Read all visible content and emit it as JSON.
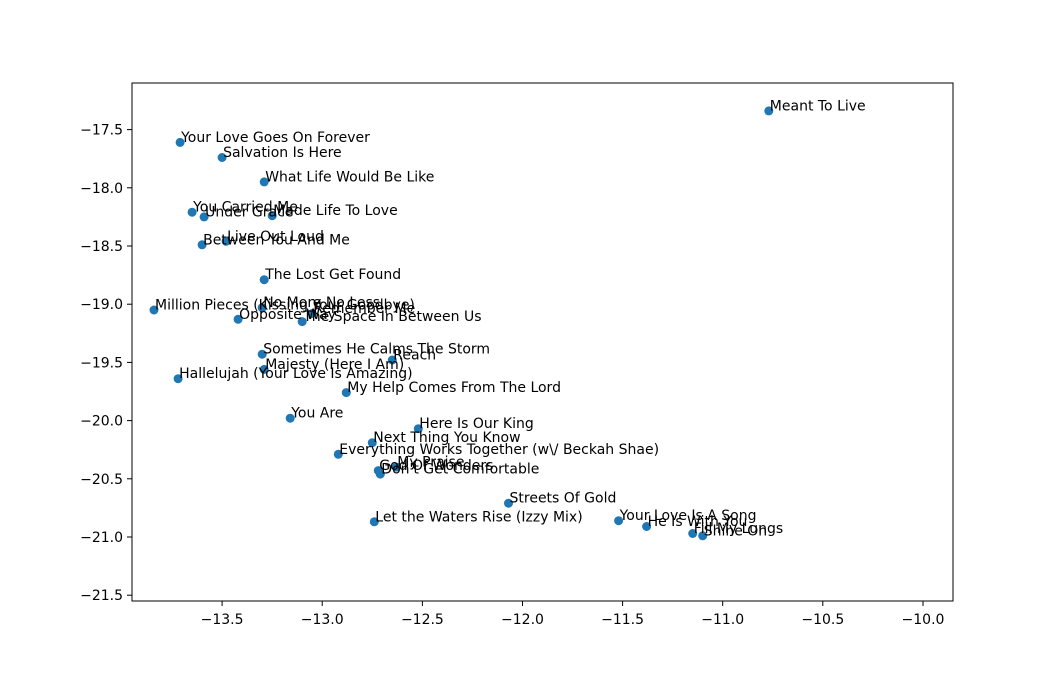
{
  "chart_data": {
    "type": "scatter",
    "title": "",
    "xlabel": "",
    "ylabel": "",
    "xlim": [
      -13.95,
      -9.85
    ],
    "ylim": [
      -21.55,
      -17.1
    ],
    "xticks": [
      "−13.5",
      "−13.0",
      "−12.5",
      "−12.0",
      "−11.5",
      "−11.0",
      "−10.5",
      "−10.0"
    ],
    "xtick_values": [
      -13.5,
      -13.0,
      -12.5,
      -12.0,
      -11.5,
      -11.0,
      -10.5,
      -10.0
    ],
    "yticks": [
      "−17.5",
      "−18.0",
      "−18.5",
      "−19.0",
      "−19.5",
      "−20.0",
      "−20.5",
      "−21.0",
      "−21.5"
    ],
    "ytick_values": [
      -17.5,
      -18.0,
      -18.5,
      -19.0,
      -19.5,
      -20.0,
      -20.5,
      -21.0,
      -21.5
    ],
    "grid": false,
    "marker_color": "#1f77b4",
    "points": [
      {
        "label": "Meant To Live",
        "x": -10.77,
        "y": -17.34
      },
      {
        "label": "Your Love Goes On Forever",
        "x": -13.71,
        "y": -17.61
      },
      {
        "label": "Salvation Is Here",
        "x": -13.5,
        "y": -17.74
      },
      {
        "label": "What Life Would Be Like",
        "x": -13.29,
        "y": -17.95
      },
      {
        "label": "You Carried Me",
        "x": -13.65,
        "y": -18.21
      },
      {
        "label": "Under Grace",
        "x": -13.59,
        "y": -18.25
      },
      {
        "label": "Made Life To Love",
        "x": -13.25,
        "y": -18.24
      },
      {
        "label": "Live Out Loud",
        "x": -13.48,
        "y": -18.46
      },
      {
        "label": "Between You And Me",
        "x": -13.6,
        "y": -18.49
      },
      {
        "label": "The Lost Get Found",
        "x": -13.29,
        "y": -18.79
      },
      {
        "label": "Million Pieces (Kissing Your Goodbye)",
        "x": -13.84,
        "y": -19.05
      },
      {
        "label": "No More No Less",
        "x": -13.3,
        "y": -19.03
      },
      {
        "label": "Remember Me",
        "x": -13.05,
        "y": -19.08
      },
      {
        "label": "Opposite Way",
        "x": -13.42,
        "y": -19.13
      },
      {
        "label": "The Space In Between Us",
        "x": -13.1,
        "y": -19.15
      },
      {
        "label": "Sometimes He Calms The Storm",
        "x": -13.3,
        "y": -19.43
      },
      {
        "label": "Reach",
        "x": -12.65,
        "y": -19.48
      },
      {
        "label": "Majesty (Here I Am)",
        "x": -13.29,
        "y": -19.56
      },
      {
        "label": "Hallelujah (Your Love Is Amazing)",
        "x": -13.72,
        "y": -19.64
      },
      {
        "label": "My Help Comes From The Lord",
        "x": -12.88,
        "y": -19.76
      },
      {
        "label": "You Are",
        "x": -13.16,
        "y": -19.98
      },
      {
        "label": "Here Is Our King",
        "x": -12.52,
        "y": -20.07
      },
      {
        "label": "Next Thing You Know",
        "x": -12.75,
        "y": -20.19
      },
      {
        "label": "Everything Works Together (w\\/ Beckah Shae)",
        "x": -12.92,
        "y": -20.29
      },
      {
        "label": "My Praise",
        "x": -12.63,
        "y": -20.4
      },
      {
        "label": "God Of Wonders",
        "x": -12.72,
        "y": -20.43
      },
      {
        "label": "Don't Get Comfortable",
        "x": -12.71,
        "y": -20.46
      },
      {
        "label": "Streets Of Gold",
        "x": -12.07,
        "y": -20.71
      },
      {
        "label": "Let the Waters Rise (Izzy Mix)",
        "x": -12.74,
        "y": -20.87
      },
      {
        "label": "Your Love Is A Song",
        "x": -11.52,
        "y": -20.86
      },
      {
        "label": "He Is With You",
        "x": -11.38,
        "y": -20.91
      },
      {
        "label": "Fill My Lungs",
        "x": -11.15,
        "y": -20.97
      },
      {
        "label": "Shine On",
        "x": -11.1,
        "y": -20.99
      }
    ]
  }
}
